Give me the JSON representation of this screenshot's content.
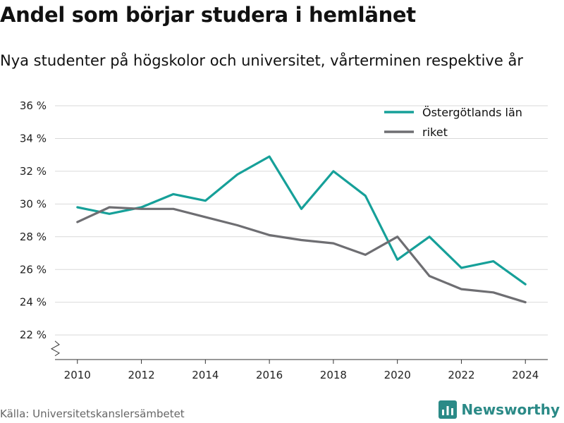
{
  "title": "Andel som börjar studera i hemlänet",
  "subtitle": "Nya studenter på högskolor och universitet, vårterminen respektive år",
  "source": "Källa: Universitetskanslersämbetet",
  "brand": "Newsworthy",
  "chart_data": {
    "type": "line",
    "x": [
      2010,
      2011,
      2012,
      2013,
      2014,
      2015,
      2016,
      2017,
      2018,
      2019,
      2020,
      2021,
      2022,
      2023,
      2024
    ],
    "series": [
      {
        "name": "Östergötlands län",
        "color": "#16a099",
        "values": [
          29.8,
          29.4,
          29.8,
          30.6,
          30.2,
          31.8,
          32.9,
          29.7,
          32.0,
          30.5,
          26.6,
          28.0,
          26.1,
          26.5,
          25.1
        ]
      },
      {
        "name": "riket",
        "color": "#6e6e72",
        "values": [
          28.9,
          29.8,
          29.7,
          29.7,
          29.2,
          28.7,
          28.1,
          27.8,
          27.6,
          26.9,
          28.0,
          25.6,
          24.8,
          24.6,
          24.0
        ]
      }
    ],
    "xticks": [
      2010,
      2012,
      2014,
      2016,
      2018,
      2020,
      2022,
      2024
    ],
    "yticks": [
      22,
      24,
      26,
      28,
      30,
      32,
      34,
      36
    ],
    "ytick_labels": [
      "22 %",
      "24 %",
      "26 %",
      "28 %",
      "30 %",
      "32 %",
      "34 %",
      "36 %"
    ],
    "xlim": [
      2009.3,
      2024.7
    ],
    "ylim": [
      20.5,
      36
    ],
    "grid": true,
    "legend_position": "top-right",
    "y_axis_break": true
  }
}
